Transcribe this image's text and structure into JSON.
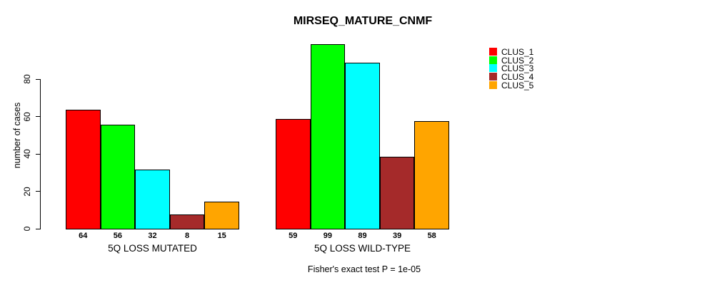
{
  "chart_data": {
    "type": "bar",
    "title": "MIRSEQ_MATURE_CNMF",
    "ylabel": "number of cases",
    "xlabel": "",
    "yticks": [
      0,
      20,
      40,
      60,
      80
    ],
    "ylim": [
      0,
      103
    ],
    "grid": false,
    "legend_position": "right-outside",
    "series_names": [
      "CLUS_1",
      "CLUS_2",
      "CLUS_3",
      "CLUS_4",
      "CLUS_5"
    ],
    "colors": [
      "#FF0000",
      "#00FF00",
      "#00FFFF",
      "#A52A2A",
      "#FFA500"
    ],
    "groups": [
      {
        "label": "5Q LOSS MUTATED",
        "values": [
          64,
          56,
          32,
          8,
          15
        ]
      },
      {
        "label": "5Q LOSS WILD-TYPE",
        "values": [
          59,
          99,
          89,
          39,
          58
        ]
      }
    ],
    "bar_value_labels_shown": true,
    "annotation": "Fisher's exact test P = 1e-05"
  }
}
